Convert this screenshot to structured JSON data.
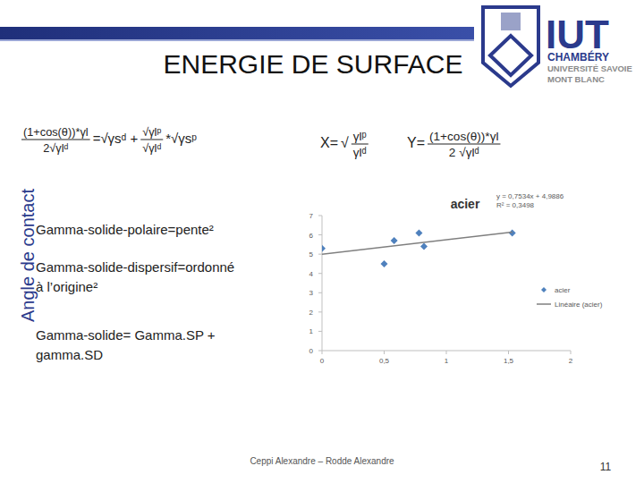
{
  "chart_data": {
    "type": "scatter",
    "title": "acier",
    "annotations": [
      "y = 0,7534x + 4,9886",
      "R² = 0,3498"
    ],
    "series": [
      {
        "name": "acier",
        "type": "scatter",
        "color": "#4f81bd",
        "marker": "diamond",
        "x": [
          0,
          0.5,
          0.58,
          0.78,
          0.82,
          1.53
        ],
        "values": [
          5.3,
          4.5,
          5.7,
          6.1,
          5.4,
          6.1
        ]
      },
      {
        "name": "Linéaire (acier)",
        "type": "line",
        "color": "#7f7f7f",
        "line_style": "solid",
        "x": [
          0,
          1.53
        ],
        "values": [
          4.99,
          6.14
        ]
      }
    ],
    "xlim": [
      0,
      2
    ],
    "xticks": [
      0,
      {
        "value": 0.5,
        "label": "0,5"
      },
      1,
      {
        "value": 1.5,
        "label": "1,5"
      },
      2
    ],
    "ylim": [
      0,
      7
    ],
    "yticks": [
      0,
      1,
      2,
      3,
      4,
      5,
      6,
      7
    ],
    "grid": false,
    "legend": "right"
  },
  "slide": {
    "title": "ENERGIE DE SURFACE",
    "side_label": "Angle de contact",
    "formula": [
      {
        "num": "(1+cos(θ))*γl",
        "den": "2√γlᵈ"
      },
      {
        "text": "=√γsᵈ +"
      },
      {
        "num": "√γlᵖ",
        "den": "√γlᵈ"
      },
      {
        "text": "*√γsᵖ"
      }
    ],
    "x_def": [
      {
        "text": "X="
      },
      {
        "text": "√"
      },
      {
        "num": "γlᵖ",
        "den": "γlᵈ"
      }
    ],
    "y_def": [
      {
        "text": "Y="
      },
      {
        "num": "(1+cos(θ))*γl",
        "den": "2 √γlᵈ"
      }
    ],
    "bullets": [
      [
        "Gamma-solide-polaire=pente²"
      ],
      [
        "Gamma-solide-dispersif=ordonné",
        "à l’origine²"
      ],
      [
        "Gamma-solide= Gamma.SP +",
        "gamma.SD"
      ]
    ],
    "logo": [
      "IUT",
      "CHAMBÉRY",
      "UNIVERSITÉ SAVOIE",
      "MONT BLANC"
    ],
    "footer": "Ceppi Alexandre – Rodde Alexandre",
    "page": 11
  }
}
